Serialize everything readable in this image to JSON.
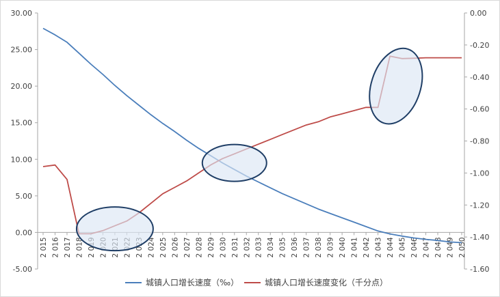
{
  "chart_data": {
    "type": "line",
    "x": [
      "2 015",
      "2 016",
      "2 017",
      "2 018",
      "2 019",
      "2 020",
      "2 021",
      "2 022",
      "2 023",
      "2 024",
      "2 025",
      "2 026",
      "2 027",
      "2 028",
      "2 029",
      "2 030",
      "2 031",
      "2 032",
      "2 033",
      "2 034",
      "2 035",
      "2 036",
      "2 037",
      "2 038",
      "2 039",
      "2 040",
      "2 041",
      "2 042",
      "2 043",
      "2 044",
      "2 045",
      "2 046",
      "2 047",
      "2 048",
      "2 049",
      "2 050"
    ],
    "y_left": {
      "range": [
        -5,
        30
      ],
      "ticks": [
        "-5.00",
        "0.00",
        "5.00",
        "10.00",
        "15.00",
        "20.00",
        "25.00",
        "30.00"
      ],
      "tick_values": [
        -5,
        0,
        5,
        10,
        15,
        20,
        25,
        30
      ]
    },
    "y_right": {
      "range": [
        -1.6,
        0
      ],
      "ticks": [
        "-1.60",
        "-1.40",
        "-1.20",
        "-1.00",
        "-0.80",
        "-0.60",
        "-0.40",
        "-0.20",
        "0.00"
      ],
      "tick_values": [
        -1.6,
        -1.4,
        -1.2,
        -1.0,
        -0.8,
        -0.6,
        -0.4,
        -0.2,
        0.0
      ]
    },
    "series": [
      {
        "name": "城镇人口增长速度（‰）",
        "axis": "left",
        "color": "#4a7ebb",
        "values": [
          27.9,
          27.0,
          26.0,
          24.5,
          23.0,
          21.6,
          20.1,
          18.7,
          17.4,
          16.1,
          14.9,
          13.8,
          12.6,
          11.5,
          10.5,
          9.5,
          8.6,
          7.7,
          6.9,
          6.1,
          5.3,
          4.6,
          3.9,
          3.2,
          2.6,
          2.0,
          1.4,
          0.8,
          0.2,
          -0.2,
          -0.5,
          -0.75,
          -0.95,
          -1.1,
          -1.3,
          -1.4
        ]
      },
      {
        "name": "城镇人口增长速度变化（千分点）",
        "axis": "right",
        "color": "#be4b48",
        "values": [
          -0.96,
          -0.95,
          -1.04,
          -1.38,
          -1.38,
          -1.36,
          -1.33,
          -1.3,
          -1.25,
          -1.19,
          -1.13,
          -1.09,
          -1.05,
          -1.0,
          -0.95,
          -0.91,
          -0.88,
          -0.85,
          -0.82,
          -0.79,
          -0.76,
          -0.73,
          -0.7,
          -0.68,
          -0.65,
          -0.63,
          -0.61,
          -0.59,
          -0.59,
          -0.27,
          -0.285,
          -0.283,
          -0.28,
          -0.28,
          -0.28,
          -0.28
        ]
      }
    ],
    "highlights": [
      {
        "center_index": 6,
        "center_value": 0.5,
        "axis": "left"
      },
      {
        "center_index": 16,
        "center_value": 9.5,
        "axis": "left"
      },
      {
        "center_index": 29.5,
        "center_value": 20.0,
        "axis": "left"
      }
    ],
    "legend_position": "bottom",
    "grid": false
  }
}
